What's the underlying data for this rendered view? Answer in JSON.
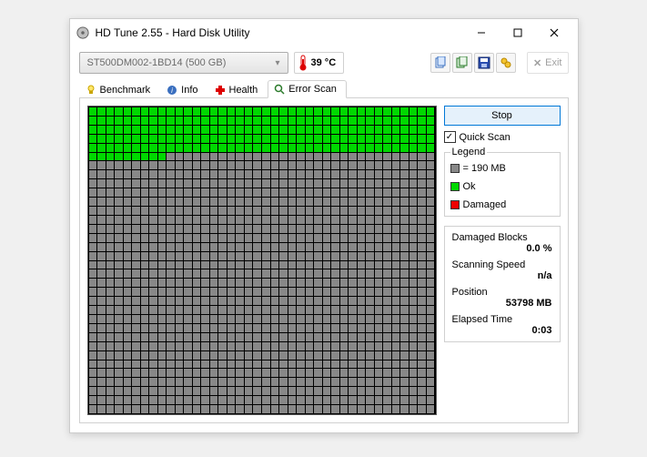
{
  "window": {
    "title": "HD Tune 2.55 - Hard Disk Utility"
  },
  "top": {
    "drive": "ST500DM002-1BD14 (500 GB)",
    "temperature": "39 °C",
    "exit": "Exit"
  },
  "tabs": {
    "benchmark": "Benchmark",
    "info": "Info",
    "health": "Health",
    "errorscan": "Error Scan"
  },
  "scan": {
    "grid": {
      "cols": 40,
      "rows": 34,
      "ok_cells": 209
    },
    "stop_label": "Stop",
    "quickscan_label": "Quick Scan",
    "quickscan_checked": true,
    "legend": {
      "title": "Legend",
      "block_size": "= 190 MB",
      "ok": "Ok",
      "damaged": "Damaged"
    },
    "stats": {
      "damaged_label": "Damaged Blocks",
      "damaged_value": "0.0 %",
      "speed_label": "Scanning Speed",
      "speed_value": "n/a",
      "position_label": "Position",
      "position_value": "53798 MB",
      "elapsed_label": "Elapsed Time",
      "elapsed_value": "0:03"
    }
  },
  "colors": {
    "ok": "#00d800",
    "default": "#888888",
    "damaged": "#e00000"
  }
}
